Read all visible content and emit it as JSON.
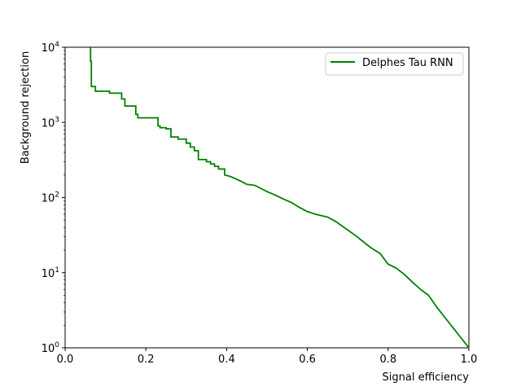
{
  "chart_data": {
    "type": "line",
    "xlabel": "Signal efficiency",
    "ylabel": "Background rejection",
    "xlim": [
      0,
      1
    ],
    "ylim": [
      1,
      10000
    ],
    "yscale": "log",
    "grid": false,
    "legend_position": "top-right",
    "x_ticks": [
      "0.0",
      "0.2",
      "0.4",
      "0.6",
      "0.8",
      "1.0"
    ],
    "y_ticks": [
      {
        "base": "10",
        "exp": "0"
      },
      {
        "base": "10",
        "exp": "1"
      },
      {
        "base": "10",
        "exp": "2"
      },
      {
        "base": "10",
        "exp": "3"
      },
      {
        "base": "10",
        "exp": "4"
      }
    ],
    "series": [
      {
        "name": "Delphes Tau RNN",
        "color": "#008000",
        "x": [
          0.06,
          0.063,
          0.063,
          0.065,
          0.065,
          0.075,
          0.075,
          0.11,
          0.11,
          0.14,
          0.14,
          0.148,
          0.148,
          0.175,
          0.175,
          0.18,
          0.18,
          0.23,
          0.23,
          0.235,
          0.235,
          0.25,
          0.25,
          0.262,
          0.262,
          0.28,
          0.28,
          0.3,
          0.3,
          0.31,
          0.31,
          0.32,
          0.32,
          0.33,
          0.33,
          0.35,
          0.35,
          0.36,
          0.36,
          0.37,
          0.37,
          0.38,
          0.38,
          0.395,
          0.395,
          0.41,
          0.43,
          0.44,
          0.45,
          0.47,
          0.5,
          0.52,
          0.54,
          0.56,
          0.58,
          0.6,
          0.62,
          0.65,
          0.67,
          0.68,
          0.7,
          0.72,
          0.75,
          0.76,
          0.78,
          0.8,
          0.82,
          0.84,
          0.86,
          0.88,
          0.9,
          0.91,
          0.92,
          1.0
        ],
        "y": [
          10000,
          10000,
          6500,
          6500,
          3000,
          3000,
          2600,
          2600,
          2450,
          2450,
          2050,
          2050,
          1650,
          1650,
          1280,
          1280,
          1150,
          1150,
          900,
          900,
          850,
          850,
          820,
          820,
          640,
          640,
          600,
          600,
          530,
          530,
          470,
          470,
          420,
          420,
          320,
          320,
          300,
          300,
          280,
          280,
          260,
          260,
          240,
          240,
          200,
          190,
          170,
          160,
          150,
          145,
          120,
          108,
          96,
          86,
          74,
          65,
          60,
          55,
          48,
          44,
          37,
          31,
          23,
          21,
          18,
          13,
          11.5,
          9.5,
          7.5,
          6,
          5,
          4.2,
          3.5,
          1
        ]
      }
    ]
  }
}
